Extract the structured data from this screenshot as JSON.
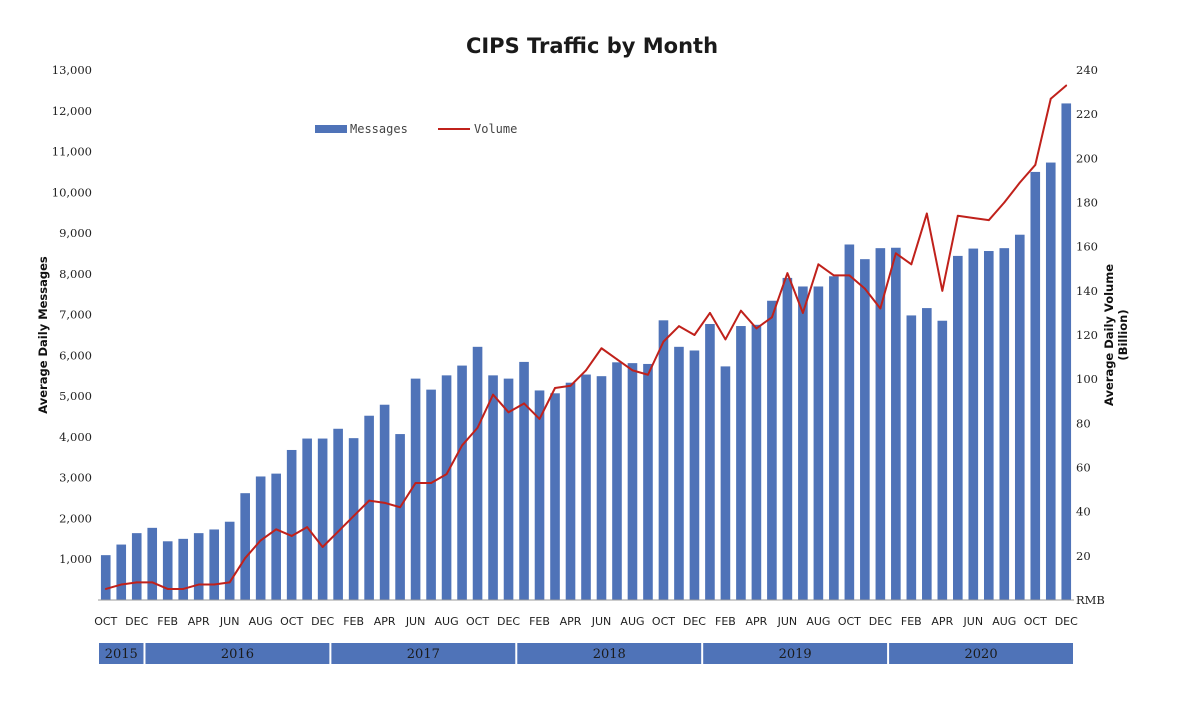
{
  "chart_data": {
    "type": "bar",
    "title": "CIPS Traffic by Month",
    "ylabel": "Average Daily Messages",
    "y2label_line1": "Average Daily Volume",
    "y2label_line2": "(Billion)",
    "y2_unit": "RMB",
    "ylim": [
      0,
      13000
    ],
    "y2lim": [
      0,
      240
    ],
    "yticks": [
      "1,000",
      "2,000",
      "3,000",
      "4,000",
      "5,000",
      "6,000",
      "7,000",
      "8,000",
      "9,000",
      "10,000",
      "11,000",
      "12,000",
      "13,000"
    ],
    "y2ticks": [
      "20",
      "40",
      "60",
      "80",
      "100",
      "120",
      "140",
      "160",
      "180",
      "200",
      "220",
      "240"
    ],
    "categories": [
      "OCT",
      "NOV",
      "DEC",
      "JAN",
      "FEB",
      "MAR",
      "APR",
      "MAY",
      "JUN",
      "JUL",
      "AUG",
      "SEP",
      "OCT",
      "NOV",
      "DEC",
      "JAN",
      "FEB",
      "MAR",
      "APR",
      "MAY",
      "JUN",
      "JUL",
      "AUG",
      "SEP",
      "OCT",
      "NOV",
      "DEC",
      "JAN",
      "FEB",
      "MAR",
      "APR",
      "MAY",
      "JUN",
      "JUL",
      "AUG",
      "SEP",
      "OCT",
      "NOV",
      "DEC",
      "JAN",
      "FEB",
      "MAR",
      "APR",
      "MAY",
      "JUN",
      "JUL",
      "AUG",
      "SEP",
      "OCT",
      "NOV",
      "DEC",
      "JAN",
      "FEB",
      "MAR",
      "APR",
      "MAY",
      "JUN",
      "JUL",
      "AUG",
      "SEP",
      "OCT",
      "NOV",
      "DEC"
    ],
    "shown_tick_labels": [
      {
        "index": 0,
        "label": "OCT"
      },
      {
        "index": 2,
        "label": "DEC"
      },
      {
        "index": 4,
        "label": "FEB"
      },
      {
        "index": 6,
        "label": "APR"
      },
      {
        "index": 8,
        "label": "JUN"
      },
      {
        "index": 10,
        "label": "AUG"
      },
      {
        "index": 12,
        "label": "OCT"
      },
      {
        "index": 14,
        "label": "DEC"
      },
      {
        "index": 16,
        "label": "FEB"
      },
      {
        "index": 18,
        "label": "APR"
      },
      {
        "index": 20,
        "label": "JUN"
      },
      {
        "index": 22,
        "label": "AUG"
      },
      {
        "index": 24,
        "label": "OCT"
      },
      {
        "index": 26,
        "label": "DEC"
      },
      {
        "index": 28,
        "label": "FEB"
      },
      {
        "index": 30,
        "label": "APR"
      },
      {
        "index": 32,
        "label": "JUN"
      },
      {
        "index": 34,
        "label": "AUG"
      },
      {
        "index": 36,
        "label": "OCT"
      },
      {
        "index": 38,
        "label": "DEC"
      },
      {
        "index": 40,
        "label": "FEB"
      },
      {
        "index": 42,
        "label": "APR"
      },
      {
        "index": 44,
        "label": "JUN"
      },
      {
        "index": 46,
        "label": "AUG"
      },
      {
        "index": 48,
        "label": "OCT"
      },
      {
        "index": 50,
        "label": "DEC"
      },
      {
        "index": 52,
        "label": "FEB"
      },
      {
        "index": 54,
        "label": "APR"
      },
      {
        "index": 56,
        "label": "JUN"
      },
      {
        "index": 58,
        "label": "AUG"
      },
      {
        "index": 60,
        "label": "OCT"
      },
      {
        "index": 62,
        "label": "DEC"
      }
    ],
    "years": [
      {
        "label": "2015",
        "start": 0,
        "end": 2
      },
      {
        "label": "2016",
        "start": 3,
        "end": 14
      },
      {
        "label": "2017",
        "start": 15,
        "end": 26
      },
      {
        "label": "2018",
        "start": 27,
        "end": 38
      },
      {
        "label": "2019",
        "start": 39,
        "end": 50
      },
      {
        "label": "2020",
        "start": 51,
        "end": 62
      }
    ],
    "series": [
      {
        "name": "Messages",
        "type": "bar",
        "axis": "left",
        "color": "#4f73b8",
        "values": [
          1100,
          1360,
          1640,
          1770,
          1440,
          1500,
          1640,
          1730,
          1920,
          2620,
          3030,
          3100,
          3680,
          3960,
          3960,
          4200,
          3970,
          4520,
          4790,
          4070,
          5430,
          5160,
          5510,
          5750,
          6210,
          5510,
          5430,
          5840,
          5140,
          5070,
          5330,
          5530,
          5490,
          5830,
          5810,
          5790,
          6860,
          6210,
          6120,
          6770,
          5730,
          6720,
          6750,
          7340,
          7900,
          7690,
          7690,
          7940,
          8720,
          8360,
          8630,
          8640,
          6980,
          7160,
          6850,
          8440,
          8620,
          8560,
          8630,
          8960,
          10500,
          10730,
          12180
        ]
      },
      {
        "name": "Volume",
        "type": "line",
        "axis": "right",
        "color": "#c0211b",
        "values": [
          5,
          7,
          8,
          8,
          5,
          5,
          7,
          7,
          8,
          19,
          27,
          32,
          29,
          33,
          24,
          31,
          38,
          45,
          44,
          42,
          53,
          53,
          57,
          70,
          78,
          93,
          85,
          89,
          82,
          96,
          97,
          104,
          114,
          109,
          104,
          102,
          117,
          124,
          120,
          130,
          118,
          131,
          123,
          128,
          148,
          130,
          152,
          147,
          147,
          141,
          132,
          157,
          152,
          175,
          140,
          174,
          173,
          172,
          180,
          189,
          197,
          227,
          233
        ]
      }
    ]
  }
}
